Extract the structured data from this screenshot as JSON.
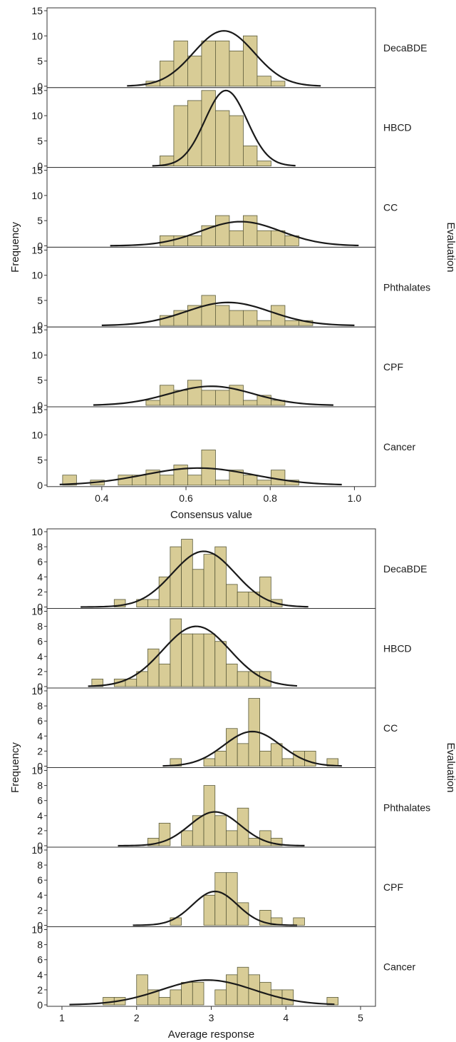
{
  "colors": {
    "bar_fill": "#d8cc96",
    "bar_stroke": "#5a5a3a",
    "curve": "#1a1a1a",
    "frame": "#333333"
  },
  "chart_data": [
    {
      "type": "bar",
      "subtype": "histogram-with-normal-curve",
      "title": "",
      "xlabel": "Consensus value",
      "ylabel": "Frequency",
      "facet_label": "Evaluation",
      "xlim": [
        0.27,
        1.05
      ],
      "ylim": [
        0,
        15
      ],
      "yticks": [
        0,
        5,
        10,
        15
      ],
      "xticks": [
        0.4,
        0.6,
        0.8,
        1.0
      ],
      "xtick_labels": [
        "0.4",
        "0.6",
        "0.8",
        "1.0"
      ],
      "bin_width": 0.033,
      "panels": [
        {
          "label": "DecaBDE",
          "bin_start": 0.505,
          "counts": [
            1,
            5,
            9,
            6,
            9,
            9,
            7,
            10,
            2,
            1
          ],
          "curve": {
            "mean": 0.69,
            "sd": 0.072,
            "peak": 11,
            "x_range": [
              0.46,
              0.92
            ]
          }
        },
        {
          "label": "HBCD",
          "bin_start": 0.538,
          "counts": [
            2,
            12,
            13,
            15,
            11,
            10,
            4,
            1
          ],
          "curve": {
            "mean": 0.695,
            "sd": 0.05,
            "peak": 15,
            "x_range": [
              0.52,
              0.86
            ]
          }
        },
        {
          "label": "CC",
          "bin_start": 0.538,
          "counts": [
            2,
            2,
            2,
            4,
            6,
            3,
            6,
            3,
            3,
            2
          ],
          "curve": {
            "mean": 0.73,
            "sd": 0.095,
            "peak": 4.8,
            "x_range": [
              0.42,
              1.01
            ]
          }
        },
        {
          "label": "Phthalates",
          "bin_start": 0.538,
          "counts": [
            2,
            3,
            4,
            6,
            4,
            3,
            3,
            1,
            4,
            1,
            1
          ],
          "curve": {
            "mean": 0.7,
            "sd": 0.1,
            "peak": 4.6,
            "x_range": [
              0.4,
              1.0
            ]
          }
        },
        {
          "label": "CPF",
          "bin_start": 0.505,
          "counts": [
            1,
            4,
            3,
            5,
            3,
            3,
            4,
            1,
            2,
            1
          ],
          "curve": {
            "mean": 0.66,
            "sd": 0.1,
            "peak": 3.8,
            "x_range": [
              0.38,
              0.95
            ]
          }
        },
        {
          "label": "Cancer",
          "bin_start": 0.307,
          "counts": [
            2,
            0,
            1,
            0,
            2,
            2,
            3,
            2,
            4,
            2,
            7,
            1,
            3,
            2,
            1,
            3,
            1
          ],
          "curve": {
            "mean": 0.63,
            "sd": 0.13,
            "peak": 3.4,
            "x_range": [
              0.3,
              0.97
            ]
          }
        }
      ]
    },
    {
      "type": "bar",
      "subtype": "histogram-with-normal-curve",
      "title": "",
      "xlabel": "Average response",
      "ylabel": "Frequency",
      "facet_label": "Evaluation",
      "xlim": [
        0.8,
        5.2
      ],
      "ylim": [
        0,
        10
      ],
      "yticks": [
        0,
        2,
        4,
        6,
        8,
        10
      ],
      "xticks": [
        1,
        2,
        3,
        4,
        5
      ],
      "xtick_labels": [
        "1",
        "2",
        "3",
        "4",
        "5"
      ],
      "bin_width": 0.15,
      "panels": [
        {
          "label": "DecaBDE",
          "bin_start": 1.7,
          "counts": [
            1,
            0,
            1,
            1,
            4,
            8,
            9,
            5,
            7,
            8,
            3,
            2,
            2,
            4,
            1
          ],
          "curve": {
            "mean": 2.9,
            "sd": 0.42,
            "peak": 7.4,
            "x_range": [
              1.25,
              4.3
            ]
          }
        },
        {
          "label": "HBCD",
          "bin_start": 1.4,
          "counts": [
            1,
            0,
            1,
            1,
            2,
            5,
            3,
            9,
            7,
            7,
            7,
            6,
            3,
            2,
            2,
            2
          ],
          "curve": {
            "mean": 2.8,
            "sd": 0.45,
            "peak": 8,
            "x_range": [
              1.35,
              4.15
            ]
          }
        },
        {
          "label": "CC",
          "bin_start": 2.45,
          "counts": [
            1,
            0,
            0,
            1,
            2,
            5,
            3,
            9,
            2,
            3,
            1,
            2,
            2,
            0,
            1
          ],
          "curve": {
            "mean": 3.55,
            "sd": 0.38,
            "peak": 4.6,
            "x_range": [
              2.35,
              4.75
            ]
          }
        },
        {
          "label": "Phthalates",
          "bin_start": 2.15,
          "counts": [
            1,
            3,
            0,
            2,
            4,
            8,
            4,
            2,
            5,
            1,
            2,
            1
          ],
          "curve": {
            "mean": 3.05,
            "sd": 0.34,
            "peak": 4.5,
            "x_range": [
              1.75,
              4.25
            ]
          }
        },
        {
          "label": "CPF",
          "bin_start": 2.45,
          "counts": [
            1,
            0,
            0,
            4,
            7,
            7,
            3,
            0,
            2,
            1,
            0,
            1
          ],
          "curve": {
            "mean": 3.05,
            "sd": 0.3,
            "peak": 4.5,
            "x_range": [
              1.95,
              4.15
            ]
          }
        },
        {
          "label": "Cancer",
          "bin_start": 1.55,
          "counts": [
            1,
            1,
            0,
            4,
            2,
            1,
            2,
            3,
            3,
            0,
            2,
            4,
            5,
            4,
            3,
            2,
            2,
            0,
            0,
            0,
            1
          ],
          "curve": {
            "mean": 2.95,
            "sd": 0.62,
            "peak": 3.3,
            "x_range": [
              1.1,
              4.65
            ]
          }
        }
      ]
    }
  ]
}
